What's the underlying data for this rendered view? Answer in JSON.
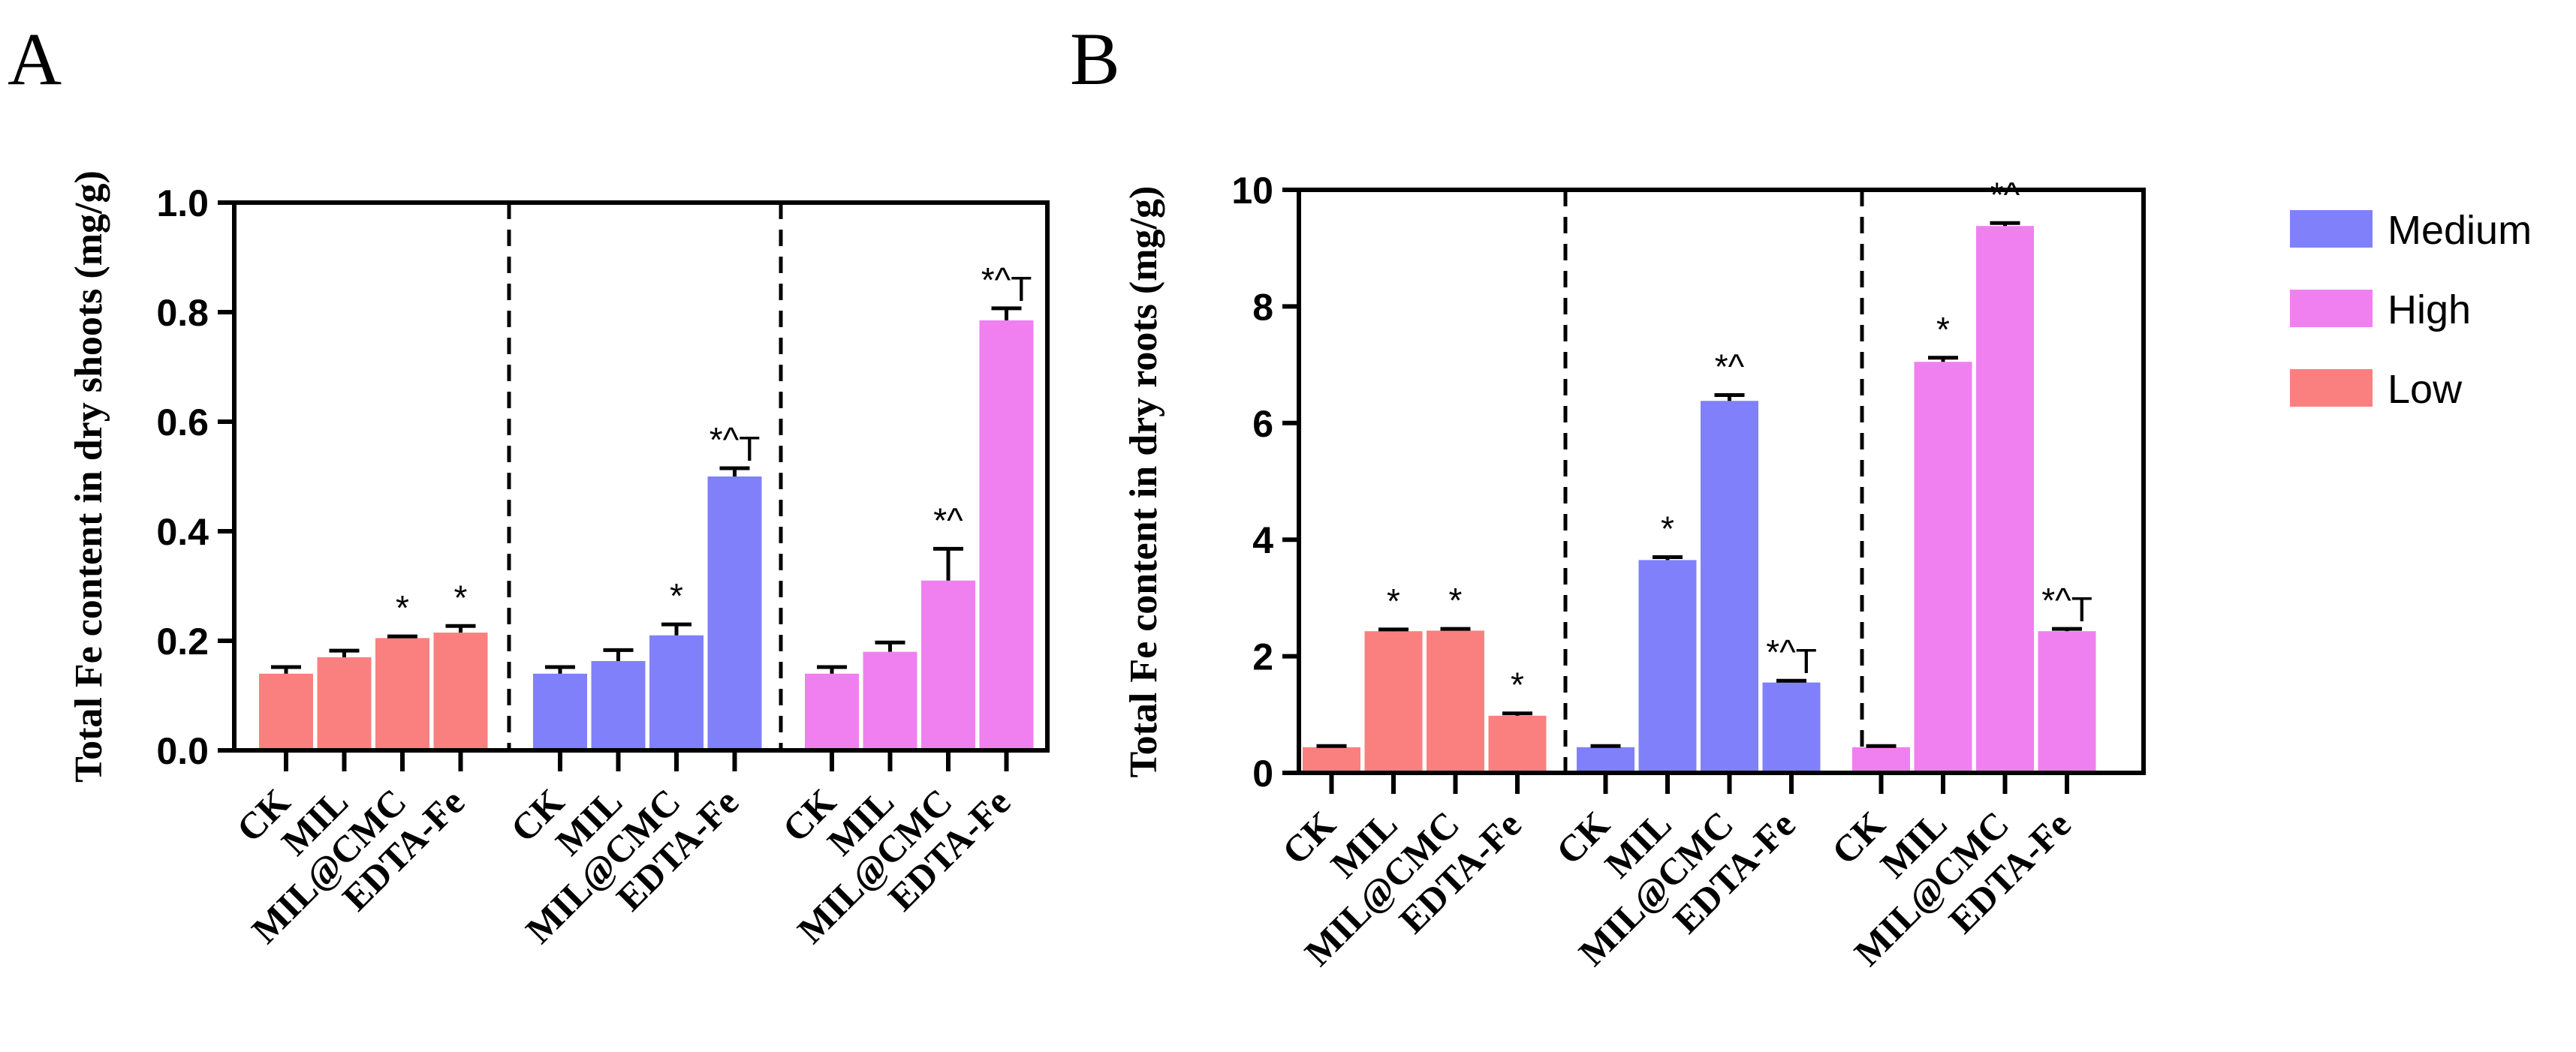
{
  "colors": {
    "Low": "#fa8080",
    "Medium": "#8080fa",
    "High": "#f080f0"
  },
  "legend": [
    {
      "name": "Medium",
      "color": "#8080fa"
    },
    {
      "name": "High",
      "color": "#f080f0"
    },
    {
      "name": "Low",
      "color": "#fa8080"
    }
  ],
  "chart_data": [
    {
      "type": "bar",
      "panel": "A",
      "title": "",
      "xlabel": "",
      "ylabel": "Total Fe content in dry shoots (mg/g)",
      "ylim": [
        0,
        1.0
      ],
      "yticks": [
        0.0,
        0.2,
        0.4,
        0.6,
        0.8,
        1.0
      ],
      "ytick_labels": [
        "0.0",
        "0.2",
        "0.4",
        "0.6",
        "0.8",
        "1.0"
      ],
      "categories": [
        "CK",
        "MIL",
        "MIL@CMC",
        "EDTA-Fe"
      ],
      "series": [
        {
          "name": "Low",
          "values": [
            0.14,
            0.17,
            0.205,
            0.215
          ],
          "errors": [
            0.012,
            0.012,
            0.003,
            0.012
          ],
          "labels": [
            "",
            "",
            "*",
            "*"
          ]
        },
        {
          "name": "Medium",
          "values": [
            0.14,
            0.163,
            0.21,
            0.5
          ],
          "errors": [
            0.012,
            0.02,
            0.02,
            0.015
          ],
          "labels": [
            "",
            "",
            "*",
            "*^T"
          ]
        },
        {
          "name": "High",
          "values": [
            0.14,
            0.18,
            0.31,
            0.785
          ],
          "errors": [
            0.012,
            0.017,
            0.058,
            0.022
          ],
          "labels": [
            "",
            "",
            "*^",
            "*^T"
          ]
        }
      ]
    },
    {
      "type": "bar",
      "panel": "B",
      "title": "",
      "xlabel": "",
      "ylabel": "Total Fe content in dry roots (mg/g)",
      "ylim": [
        0,
        10
      ],
      "yticks": [
        0,
        2,
        4,
        6,
        8,
        10
      ],
      "ytick_labels": [
        "0",
        "2",
        "4",
        "6",
        "8",
        "10"
      ],
      "categories": [
        "CK",
        "MIL",
        "MIL@CMC",
        "EDTA-Fe"
      ],
      "series": [
        {
          "name": "Low",
          "values": [
            0.44,
            2.43,
            2.44,
            0.98
          ],
          "errors": [
            0.02,
            0.03,
            0.03,
            0.04
          ],
          "labels": [
            "",
            "*",
            "*",
            "*"
          ]
        },
        {
          "name": "Medium",
          "values": [
            0.44,
            3.65,
            6.38,
            1.55
          ],
          "errors": [
            0.02,
            0.05,
            0.1,
            0.03
          ],
          "labels": [
            "",
            "*",
            "*^",
            "*^T"
          ]
        },
        {
          "name": "High",
          "values": [
            0.44,
            7.05,
            9.38,
            2.43
          ],
          "errors": [
            0.02,
            0.07,
            0.05,
            0.04
          ],
          "labels": [
            "",
            "*",
            "*^",
            "*^T"
          ]
        }
      ]
    }
  ]
}
